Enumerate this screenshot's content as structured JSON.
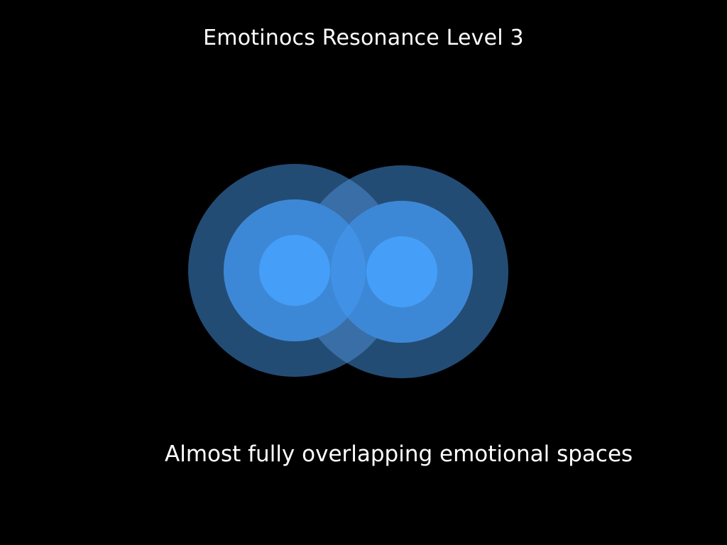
{
  "title": "Emotinocs Resonance Level 3",
  "caption": "Almost fully overlapping emotional spaces",
  "colors": {
    "background": "#000000",
    "text": "#ffffff",
    "outer_ring": "#26527f",
    "middle_ring": "#3d88d6",
    "inner_core": "#459ff8"
  }
}
